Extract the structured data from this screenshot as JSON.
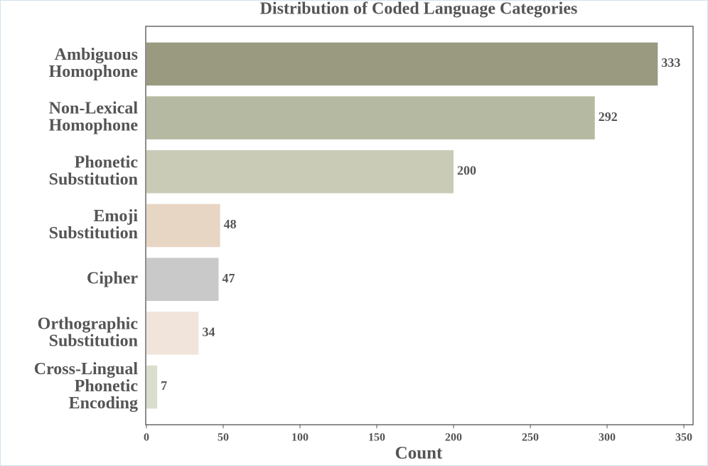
{
  "chart_data": {
    "type": "bar",
    "orientation": "horizontal",
    "title": "Distribution of Coded Language Categories",
    "x_label": "Count",
    "categories": [
      "Ambiguous Homophone",
      "Non-Lexical Homophone",
      "Phonetic Substitution",
      "Emoji Substitution",
      "Cipher",
      "Orthographic Substitution",
      "Cross-Lingual Phonetic Encoding"
    ],
    "values": [
      333,
      292,
      200,
      48,
      47,
      34,
      7
    ],
    "colors": [
      "#9a9a80",
      "#b6b9a1",
      "#c9cbb6",
      "#e8d6c5",
      "#c9c9c9",
      "#f1e5db",
      "#d9ddcc"
    ],
    "xlim": [
      0,
      356
    ],
    "xticks": [
      0,
      50,
      100,
      150,
      200,
      250,
      300,
      350
    ]
  }
}
